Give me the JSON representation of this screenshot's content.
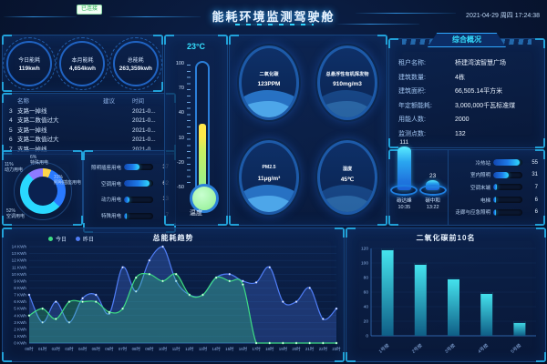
{
  "header": {
    "badge": "已连接",
    "title": "能耗环境监测驾驶舱",
    "datetime": "2021-04-29 周四 17:24:38"
  },
  "energy_stats": [
    {
      "label": "今日能耗",
      "value": "119kwh"
    },
    {
      "label": "本月能耗",
      "value": "4,654kwh"
    },
    {
      "label": "总能耗",
      "value": "263,359kwh"
    }
  ],
  "alarm_table": {
    "headers": [
      "名称",
      "建议",
      "时间"
    ],
    "rows": [
      {
        "no": "3",
        "name": "支路一掉线",
        "advice": "",
        "time": "2021-0..."
      },
      {
        "no": "4",
        "name": "支路二数值过大",
        "advice": "",
        "time": "2021-0..."
      },
      {
        "no": "5",
        "name": "支路一掉线",
        "advice": "",
        "time": "2021-0..."
      },
      {
        "no": "6",
        "name": "支路二数值过大",
        "advice": "",
        "time": "2021-0..."
      },
      {
        "no": "7",
        "name": "支路一掉线",
        "advice": "",
        "time": "2021-0..."
      }
    ]
  },
  "usage_breakdown": {
    "donut": [
      {
        "label": "特殊用电",
        "pct": 6,
        "color": "#ffd54a"
      },
      {
        "label": "照明插座用电",
        "pct": 31,
        "color": "#2979ff"
      },
      {
        "label": "空调用电",
        "pct": 52,
        "color": "#29d8ff"
      },
      {
        "label": "动力用电",
        "pct": 11,
        "color": "#8f7bff"
      }
    ],
    "bars": [
      {
        "label": "照明插座用电",
        "value": 37
      },
      {
        "label": "空调用电",
        "value": 62
      },
      {
        "label": "动力用电",
        "value": 13
      },
      {
        "label": "特殊用电",
        "value": 7
      }
    ],
    "bar_max": 70
  },
  "thermometer": {
    "value": "23°C",
    "ticks": [
      "100",
      "70",
      "40",
      "10",
      "-20",
      "-50"
    ],
    "label": "温度"
  },
  "env_circles": [
    {
      "label": "二氧化碳",
      "value": "123PPM"
    },
    {
      "label": "总悬浮性有机挥发物",
      "value": "910mg/m3"
    },
    {
      "label": "PM2.5",
      "value": "11μg/m³"
    },
    {
      "label": "湿度",
      "value": "45℃"
    }
  ],
  "overview": {
    "title": "综合概况",
    "rows": [
      {
        "label": "租户名称:",
        "value": "桥建湾滨智慧广场"
      },
      {
        "label": "建筑数量:",
        "value": "4栋"
      },
      {
        "label": "建筑面积:",
        "value": "66,505.14平方米"
      },
      {
        "label": "年定额能耗:",
        "value": "3,000,000千瓦标准煤"
      },
      {
        "label": "用能人数:",
        "value": "2000"
      },
      {
        "label": "监测点数:",
        "value": "132"
      }
    ]
  },
  "carbon": {
    "gauges": [
      {
        "value": "111",
        "label": "碳达峰",
        "time": "10:35"
      },
      {
        "value": "23",
        "label": "碳中和",
        "time": "13:22"
      }
    ],
    "bars": [
      {
        "label": "冷热站",
        "value": 55
      },
      {
        "label": "室内照明",
        "value": 31
      },
      {
        "label": "空调末端",
        "value": 7
      },
      {
        "label": "电梯",
        "value": 6
      },
      {
        "label": "走廊与应急照明",
        "value": 6
      }
    ],
    "bar_max": 60
  },
  "chart_data": [
    {
      "type": "line",
      "title": "总能耗趋势",
      "legend_position": "top-left",
      "x": [
        "00时",
        "01时",
        "02时",
        "03时",
        "04时",
        "05时",
        "06时",
        "07时",
        "08时",
        "09时",
        "10时",
        "11时",
        "12时",
        "13时",
        "14时",
        "15时",
        "16时",
        "17时",
        "18时",
        "19时",
        "20时",
        "21时",
        "22时",
        "23时"
      ],
      "series": [
        {
          "name": "今日",
          "color": "#3ddc84",
          "values": [
            4,
            5,
            3.5,
            6,
            6,
            6,
            4.5,
            5,
            9.5,
            10,
            9,
            10,
            7,
            7,
            9.5,
            9,
            8.5,
            0,
            0,
            0,
            0,
            0,
            0,
            0
          ]
        },
        {
          "name": "昨日",
          "color": "#4f7df5",
          "values": [
            7,
            3,
            6,
            3,
            6.5,
            7,
            4.3,
            11,
            7.5,
            12,
            14,
            9,
            7,
            7,
            9.5,
            10,
            9,
            8.8,
            11,
            6,
            6,
            8,
            3.5,
            5
          ]
        }
      ],
      "ylim": [
        0,
        14
      ],
      "ytick_step": 1,
      "ytick_suffix": " KWh",
      "grid": true
    },
    {
      "type": "bar",
      "title": "二氧化碳前10名",
      "categories": [
        "1号楼",
        "2号楼",
        "3号楼",
        "4号楼",
        "5号楼"
      ],
      "values": [
        120,
        100,
        80,
        60,
        20
      ],
      "ylim": [
        0,
        120
      ],
      "yticks": [
        0,
        20,
        40,
        60,
        80,
        100,
        120
      ],
      "bar_colors": [
        "#46e6f0",
        "#0f5e86"
      ],
      "grid": true
    }
  ]
}
